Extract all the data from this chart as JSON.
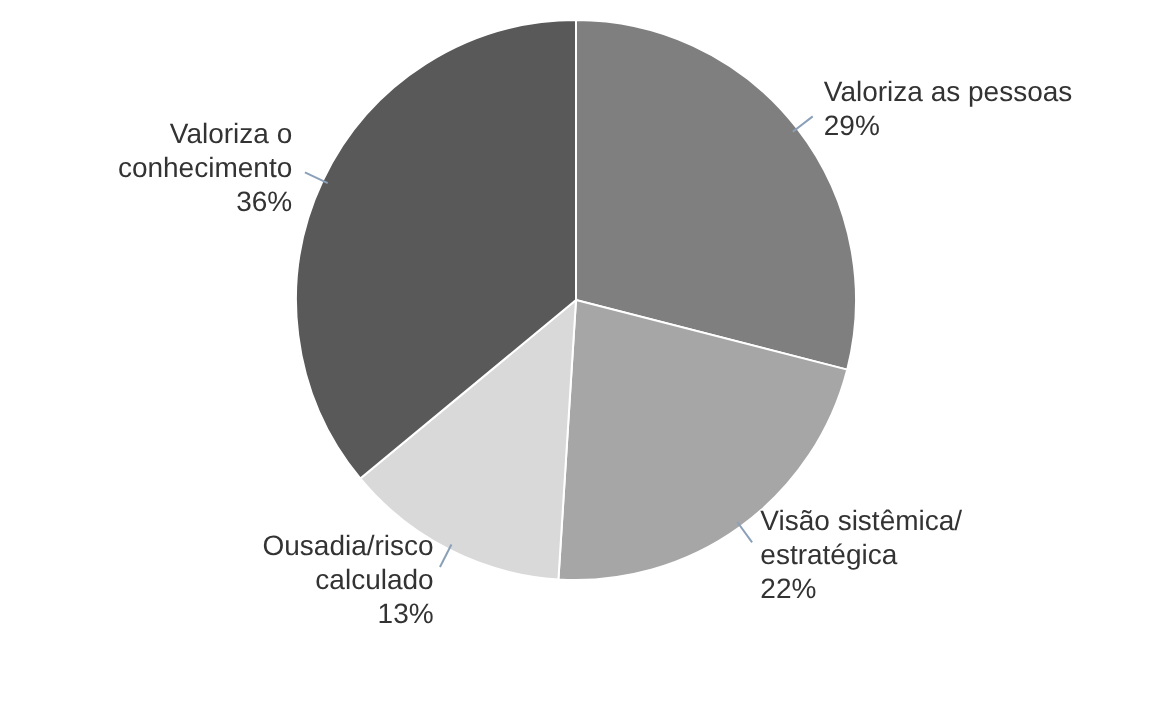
{
  "chart_data": {
    "type": "pie",
    "categories": [
      "Valoriza as pessoas",
      "Visão sistêmica/\nestratégica",
      "Ousadia/risco\ncalculado",
      "Valoriza o\nconhecimento"
    ],
    "values": [
      29,
      22,
      13,
      36
    ],
    "colors": [
      "#7f7f7f",
      "#a6a6a6",
      "#d9d9d9",
      "#595959"
    ],
    "value_labels": [
      "29%",
      "22%",
      "13%",
      "36%"
    ]
  }
}
